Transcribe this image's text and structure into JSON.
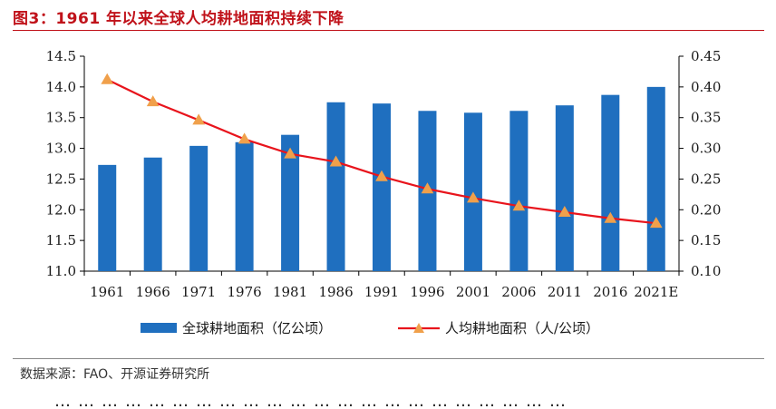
{
  "header": {
    "title": "图3：1961 年以来全球人均耕地面积持续下降"
  },
  "source": "数据来源：FAO、开源证券研究所",
  "body_text_fragment": "…………………………………………………………",
  "colors": {
    "bar": "#1f6fbf",
    "line": "#e8141c",
    "marker": "#f0a04b",
    "title": "#c0121a"
  },
  "chart_data": {
    "type": "bar+line",
    "categories": [
      "1961",
      "1966",
      "1971",
      "1976",
      "1981",
      "1986",
      "1991",
      "1996",
      "2001",
      "2006",
      "2011",
      "2016",
      "2021E"
    ],
    "series": [
      {
        "name": "全球耕地面积（亿公顷）",
        "type": "bar",
        "axis": "left",
        "values": [
          12.73,
          12.85,
          13.04,
          13.1,
          13.22,
          13.75,
          13.73,
          13.61,
          13.58,
          13.61,
          13.7,
          13.87,
          14.0
        ]
      },
      {
        "name": "人均耕地面积（人/公顷）",
        "type": "line",
        "axis": "right",
        "marker": "triangle",
        "values": [
          0.412,
          0.376,
          0.346,
          0.315,
          0.291,
          0.278,
          0.254,
          0.234,
          0.219,
          0.206,
          0.196,
          0.186,
          0.178
        ]
      }
    ],
    "y_left": {
      "min": 11.0,
      "max": 14.5,
      "ticks": [
        "11.0",
        "11.5",
        "12.0",
        "12.5",
        "13.0",
        "13.5",
        "14.0",
        "14.5"
      ]
    },
    "y_right": {
      "min": 0.1,
      "max": 0.45,
      "ticks": [
        "0.10",
        "0.15",
        "0.20",
        "0.25",
        "0.30",
        "0.35",
        "0.40",
        "0.45"
      ]
    },
    "grid": false,
    "legend": "bottom"
  }
}
